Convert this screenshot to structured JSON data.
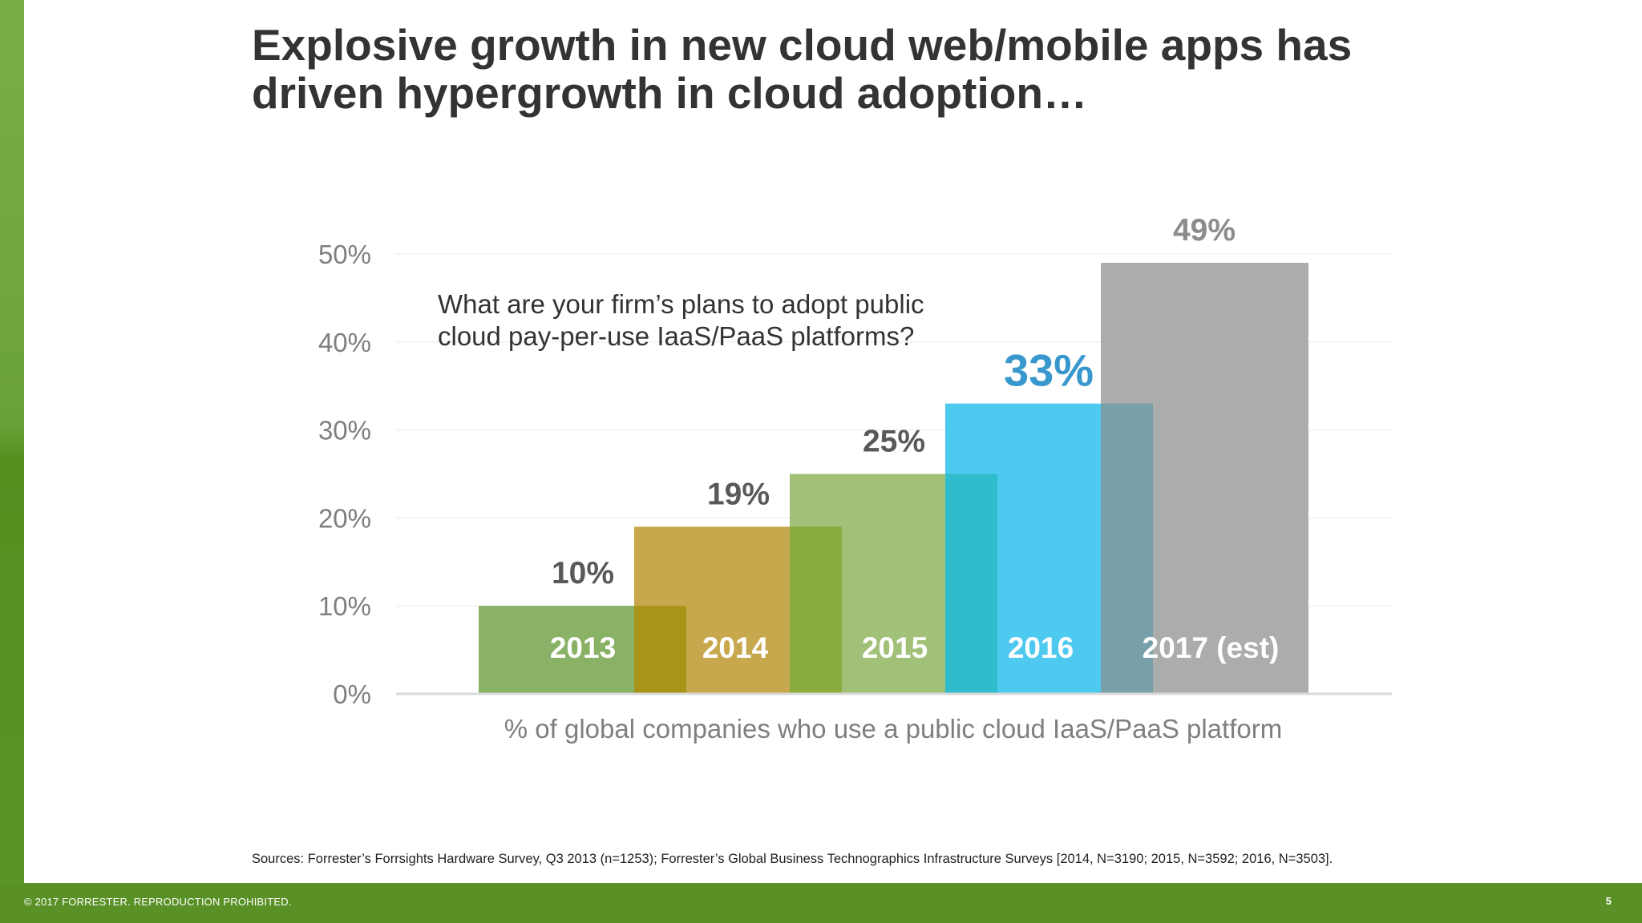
{
  "slide": {
    "title_line1": "Explosive growth in new cloud web/mobile apps has",
    "title_line2": "driven hypergrowth in cloud adoption…",
    "sources": "Sources: Forrester’s Forrsights Hardware Survey, Q3 2013 (n=1253); Forrester’s Global Business Technographics Infrastructure Surveys [2014, N=3190; 2015, N=3592; 2016, N=3503].",
    "copyright": "© 2017 FORRESTER. REPRODUCTION PROHIBITED.",
    "page_number": "5"
  },
  "chart_data": {
    "type": "bar",
    "categories": [
      "2013",
      "2014",
      "2015",
      "2016",
      "2017 (est)"
    ],
    "values": [
      10,
      19,
      25,
      33,
      49
    ],
    "value_labels": [
      "10%",
      "19%",
      "25%",
      "33%",
      "49%"
    ],
    "bar_colors": [
      "#8ab266",
      "#c7a84c",
      "#a1c179",
      "#4ec9ef",
      "#aaadab"
    ],
    "overlap_colors": [
      "#a89418",
      "#8aab3e",
      "#2fbccc",
      "#78a0a8"
    ],
    "value_label_colors": [
      "#595959",
      "#595959",
      "#595959",
      "#3897cc",
      "#8c8c8c"
    ],
    "y_tick_labels": [
      "0%",
      "10%",
      "20%",
      "30%",
      "40%",
      "50%"
    ],
    "ylim": [
      0,
      50
    ],
    "question_line1": "What are your firm’s plans to adopt public",
    "question_line2": "cloud pay-per-use IaaS/PaaS platforms?",
    "xlabel": "% of global companies who use a public cloud IaaS/PaaS platform",
    "grid": true
  }
}
